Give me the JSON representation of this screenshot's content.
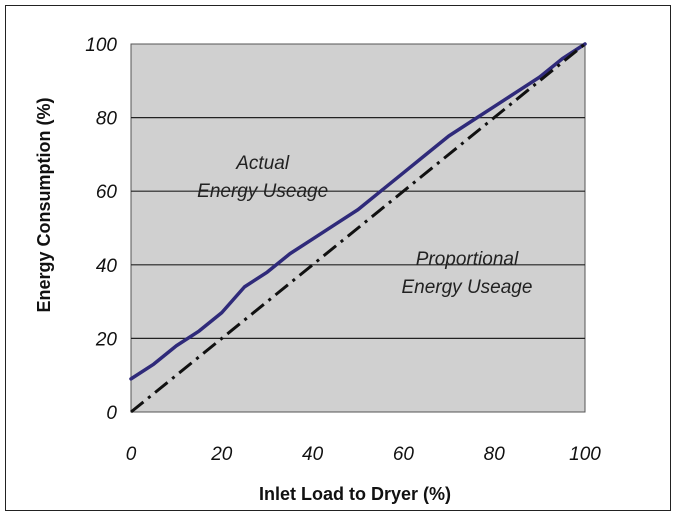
{
  "chart_data": {
    "type": "line",
    "xlabel": "Inlet Load to Dryer (%)",
    "ylabel": "Energy Consumption (%)",
    "xlim": [
      0,
      100
    ],
    "ylim": [
      0,
      100
    ],
    "x_ticks": [
      "0",
      "20",
      "40",
      "60",
      "80",
      "100"
    ],
    "y_ticks": [
      "0",
      "20",
      "40",
      "60",
      "80",
      "100"
    ],
    "grid": "horizontal",
    "background_color": "#d0d0d0",
    "series": [
      {
        "name": "Actual Energy Useage",
        "color": "#2f2a7a",
        "style": "solid",
        "x": [
          0,
          5,
          10,
          15,
          20,
          25,
          30,
          35,
          40,
          45,
          50,
          55,
          60,
          65,
          70,
          75,
          80,
          85,
          90,
          95,
          100
        ],
        "y": [
          9,
          13,
          18,
          22,
          27,
          34,
          38,
          43,
          47,
          51,
          55,
          60,
          65,
          70,
          75,
          79,
          83,
          87,
          91,
          96,
          100
        ]
      },
      {
        "name": "Proportional Energy Useage",
        "color": "#111111",
        "style": "dash-dot",
        "x": [
          0,
          100
        ],
        "y": [
          0,
          100
        ]
      }
    ],
    "annotations": [
      {
        "lines": [
          "Actual",
          "Energy Useage"
        ],
        "x": 29,
        "y": 66
      },
      {
        "lines": [
          "Proportional",
          "Energy Useage"
        ],
        "x": 74,
        "y": 40
      }
    ]
  }
}
